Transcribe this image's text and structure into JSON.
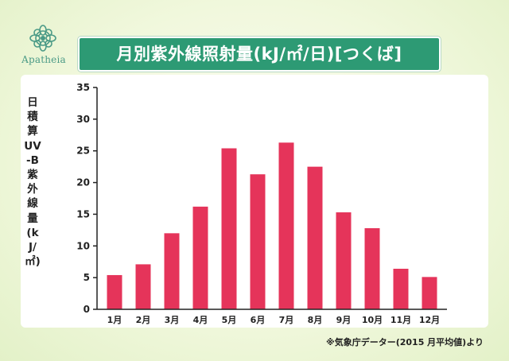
{
  "brand": {
    "name": "Apatheia",
    "logo_icon": "ornamental-flower-icon",
    "logo_color": "#4a9a86"
  },
  "colors": {
    "banner": "#2d9a74",
    "bar": "#e5345a",
    "axis": "#222222"
  },
  "footnote": "※気象庁データー(2015 月平均値)より",
  "chart_data": {
    "type": "bar",
    "title": "月別紫外線照射量(kJ/㎡/日)[つくば]",
    "ylabel": "日積算UV‐B紫外線量(kJ/㎡)",
    "xlabel": "",
    "categories": [
      "1月",
      "2月",
      "3月",
      "4月",
      "5月",
      "6月",
      "7月",
      "8月",
      "9月",
      "10月",
      "11月",
      "12月"
    ],
    "values": [
      5.4,
      7.1,
      12.0,
      16.2,
      25.4,
      21.3,
      26.3,
      22.5,
      15.3,
      12.8,
      6.4,
      5.1
    ],
    "ylim": [
      0,
      35
    ],
    "yticks": [
      0,
      5,
      10,
      15,
      20,
      25,
      30,
      35
    ],
    "grid": false,
    "legend": "none"
  }
}
